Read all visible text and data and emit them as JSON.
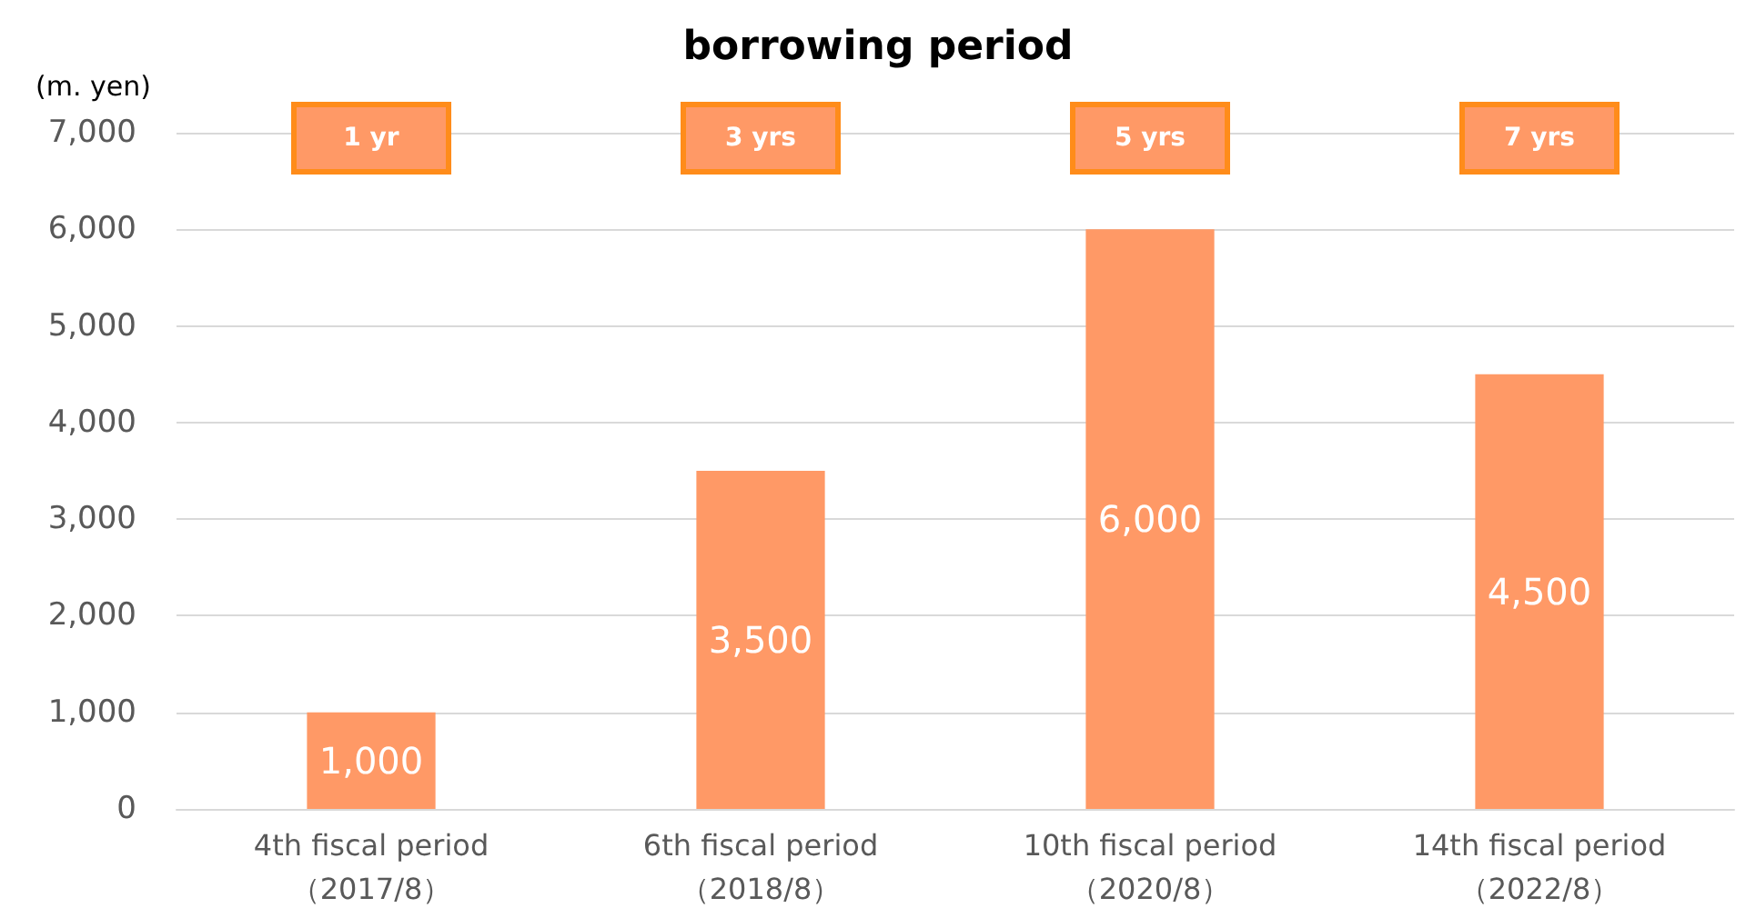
{
  "chart_data": {
    "type": "bar",
    "title": "borrowing period",
    "ylabel": "(m. yen)",
    "categories": [
      "4th fiscal period\n（2017/8）",
      "6th fiscal period\n（2018/8）",
      "10th fiscal period\n（2020/8）",
      "14th fiscal period\n（2022/8）"
    ],
    "values": [
      1000,
      3500,
      6000,
      4500
    ],
    "value_labels": [
      "1,000",
      "3,500",
      "6,000",
      "4,500"
    ],
    "color": "#ff9966",
    "ylim": [
      0,
      7000
    ],
    "yticks": [
      0,
      {
        "value": 1000,
        "label": "1,000"
      },
      {
        "value": 2000,
        "label": "2,000"
      },
      {
        "value": 3000,
        "label": "3,000"
      },
      {
        "value": 4000,
        "label": "4,000"
      },
      {
        "value": 5000,
        "label": "5,000"
      },
      {
        "value": 6000,
        "label": "6,000"
      },
      {
        "value": 7000,
        "label": "7,000"
      }
    ],
    "grid": "y",
    "annotations": [
      "1 yr",
      "3 yrs",
      "5 yrs",
      "7 yrs"
    ]
  }
}
